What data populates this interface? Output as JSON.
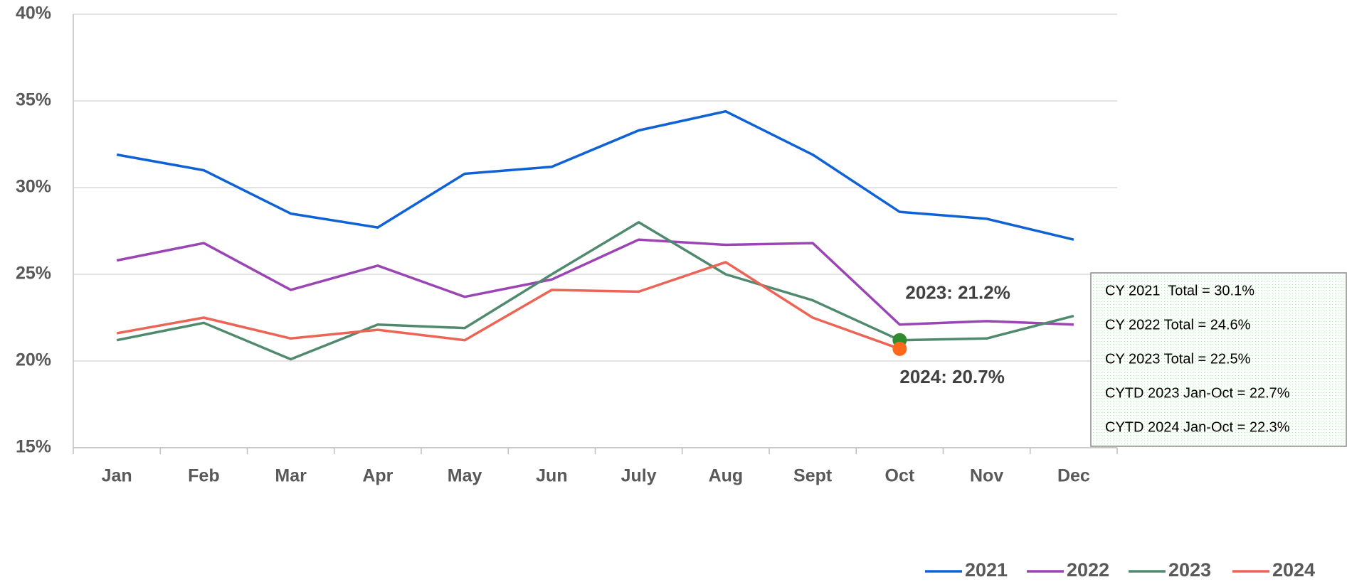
{
  "chart_data": {
    "type": "line",
    "categories": [
      "Jan",
      "Feb",
      "Mar",
      "Apr",
      "May",
      "Jun",
      "July",
      "Aug",
      "Sept",
      "Oct",
      "Nov",
      "Dec"
    ],
    "series": [
      {
        "name": "2021",
        "color": "#0f62d6",
        "values": [
          31.9,
          31.0,
          28.5,
          27.7,
          30.8,
          31.2,
          33.3,
          34.4,
          31.9,
          28.6,
          28.2,
          27.0
        ]
      },
      {
        "name": "2022",
        "color": "#9b45b5",
        "values": [
          25.8,
          26.8,
          24.1,
          25.5,
          23.7,
          24.7,
          27.0,
          26.7,
          26.8,
          22.1,
          22.3,
          22.1
        ]
      },
      {
        "name": "2023",
        "color": "#4f8a6f",
        "values": [
          21.2,
          22.2,
          20.1,
          22.1,
          21.9,
          25.0,
          28.0,
          25.0,
          23.5,
          21.2,
          21.3,
          22.6
        ]
      },
      {
        "name": "2024",
        "color": "#ec6456",
        "values": [
          21.6,
          22.5,
          21.3,
          21.8,
          21.2,
          24.1,
          24.0,
          25.7,
          22.5,
          20.7,
          null,
          null
        ]
      }
    ],
    "ylim": [
      15,
      40
    ],
    "yticks": [
      {
        "value": 15,
        "label": "15%"
      },
      {
        "value": 20,
        "label": "20%"
      },
      {
        "value": 25,
        "label": "25%"
      },
      {
        "value": 30,
        "label": "30%"
      },
      {
        "value": 35,
        "label": "35%"
      },
      {
        "value": 40,
        "label": "40%"
      }
    ],
    "grid": true,
    "legend": "bottom-right",
    "annotations": [
      {
        "text": "2023: 21.2%",
        "x": "Oct",
        "y": 21.2,
        "color": "#2e8b2e"
      },
      {
        "text": "2024: 20.7%",
        "x": "Oct",
        "y": 20.7,
        "color": "#ff6a1a"
      }
    ],
    "notes": [
      "CY 2021  Total = 30.1%",
      "CY 2022 Total = 24.6%",
      "CY 2023 Total = 22.5%",
      "CYTD 2023 Jan-Oct = 22.7%",
      "CYTD 2024 Jan-Oct = 22.3%"
    ]
  }
}
